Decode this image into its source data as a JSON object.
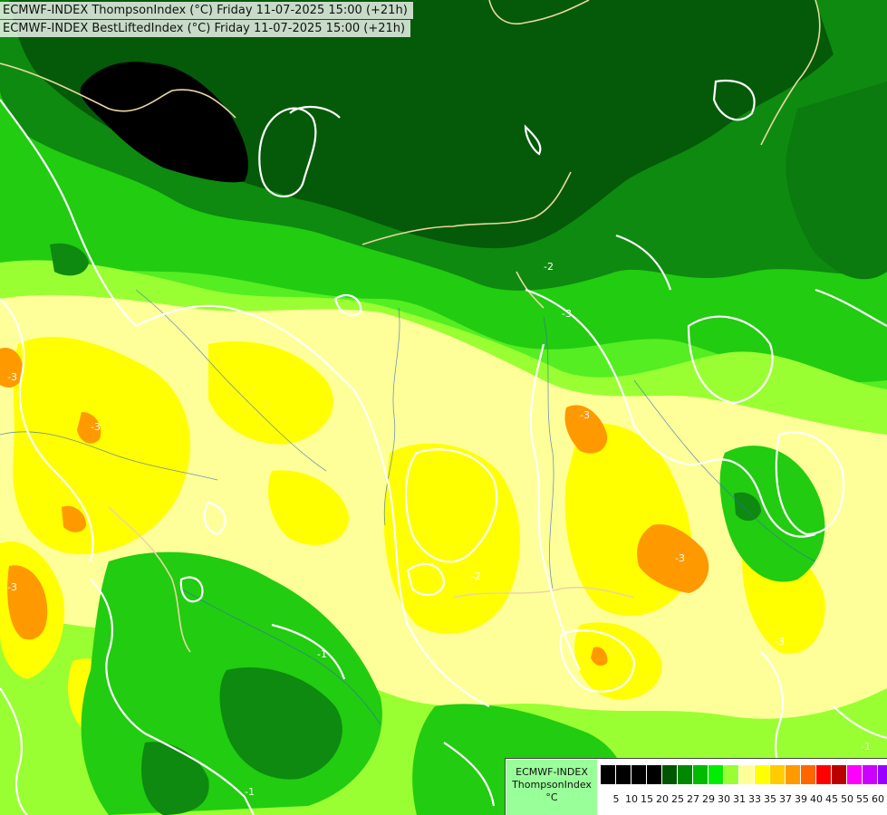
{
  "header": {
    "line1": "ECMWF-INDEX ThompsonIndex (°C) Friday 11-07-2025 15:00 (+21h)",
    "line2": "ECMWF-INDEX BestLiftedIndex (°C) Friday 11-07-2025 15:00 (+21h)"
  },
  "legend": {
    "title_line1": "ECMWF-INDEX",
    "title_line2": "ThompsonIndex",
    "unit": "°C",
    "colors": [
      "#000000",
      "#000000",
      "#000000",
      "#000000",
      "#005500",
      "#008800",
      "#00bb00",
      "#00ee00",
      "#99ff33",
      "#ffff99",
      "#ffff00",
      "#ffcc00",
      "#ff9900",
      "#ff6600",
      "#ff0000",
      "#bb0000",
      "#ff00ff",
      "#cc00ff",
      "#9900ff",
      "#6600ff",
      "#0000ff"
    ],
    "ticks": [
      "5",
      "10",
      "15",
      "20",
      "25",
      "27",
      "29",
      "30",
      "31",
      "33",
      "35",
      "37",
      "39",
      "40",
      "45",
      "50",
      "55",
      "60"
    ]
  },
  "map": {
    "contour_labels": [
      "-3",
      "-3",
      "-3",
      "-2",
      "-2",
      "-3",
      "-3",
      "-1",
      "-3",
      "-3",
      "-1",
      "-1"
    ]
  }
}
